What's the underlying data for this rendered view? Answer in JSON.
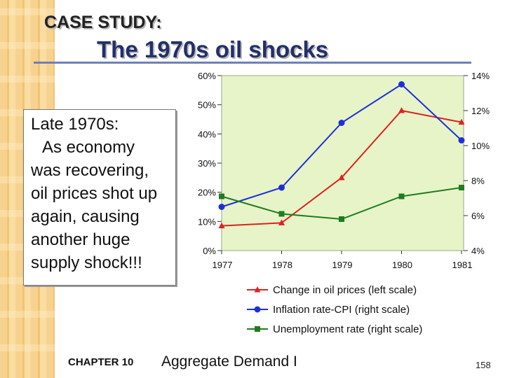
{
  "slide": {
    "case_label": "CASE STUDY:",
    "title": "The 1970s oil shocks",
    "body_lines": [
      "Late 1970s:",
      "As economy",
      "was recovering,",
      "oil prices shot up",
      "again, causing",
      "another huge",
      "supply shock!!!"
    ],
    "footer_chapter": "CHAPTER 10",
    "footer_title": "Aggregate Demand I",
    "page_number": "158"
  },
  "chart_data": {
    "type": "line",
    "x": [
      "1977",
      "1978",
      "1979",
      "1980",
      "1981"
    ],
    "left_axis": {
      "min": 0,
      "max": 60,
      "ticks": [
        "0%",
        "10%",
        "20%",
        "30%",
        "40%",
        "50%",
        "60%"
      ]
    },
    "right_axis": {
      "min": 4,
      "max": 14,
      "ticks": [
        "4%",
        "6%",
        "8%",
        "10%",
        "12%",
        "14%"
      ]
    },
    "series": [
      {
        "name": "Change in oil prices (left scale)",
        "axis": "left",
        "color": "#dd2222",
        "marker": "triangle",
        "values": [
          8.5,
          9.5,
          25,
          48,
          44
        ]
      },
      {
        "name": "Inflation rate-CPI (right scale)",
        "axis": "right",
        "color": "#1f2fd6",
        "marker": "circle",
        "values": [
          6.5,
          7.6,
          11.3,
          13.5,
          10.3
        ]
      },
      {
        "name": "Unemployment rate (right scale)",
        "axis": "right",
        "color": "#1e7d1e",
        "marker": "square",
        "values": [
          7.1,
          6.1,
          5.8,
          7.1,
          7.6
        ]
      }
    ],
    "plot_background": "#e6f4c8"
  }
}
